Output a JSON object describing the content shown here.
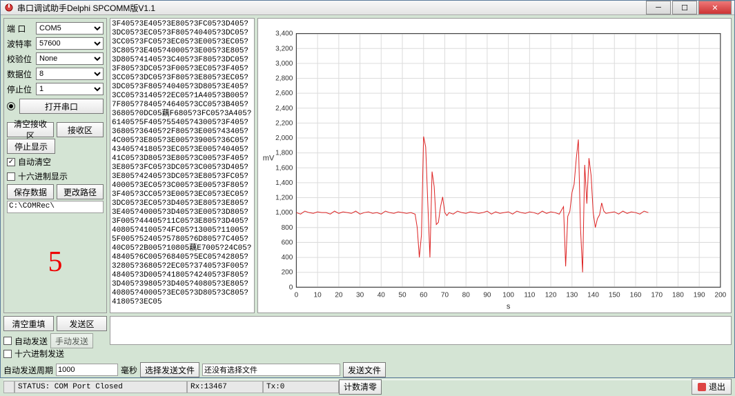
{
  "window": {
    "title": "串口调试助手Delphi SPCOMM版V1.1"
  },
  "config": {
    "port_label": "端  口",
    "port_value": "COM5",
    "baud_label": "波特率",
    "baud_value": "57600",
    "parity_label": "校验位",
    "parity_value": "None",
    "databits_label": "数据位",
    "databits_value": "8",
    "stopbits_label": "停止位",
    "stopbits_value": "1",
    "open_port": "打开串口"
  },
  "rx": {
    "clear_rx": "清空接收区",
    "rx_area": "接收区",
    "stop_display": "停止显示",
    "auto_clear": "自动清空",
    "auto_clear_on": true,
    "hex_display": "十六进制显示",
    "hex_display_on": false,
    "save_data": "保存数据",
    "change_path": "更改路径",
    "path": "C:\\COMRec\\",
    "big_num": "5"
  },
  "hex_lines": [
    "3F405?3E405?3E805?3FC05?3D405?",
    "3DC05?3EC05?3F805?40405?3DC05?",
    "3CC05?3FC05?3EC05?3E005?3EC05?",
    "3C805?3E405?40005?3E005?3E805?",
    "3D805?41405?3C405?3F805?3DC05?",
    "3F805?3DC05?3F005?3EC05?3F405?",
    "3CC05?3DC05?3F805?3E805?3EC05?",
    "3DC05?3F805?40405?3D805?3E405?",
    "3CC05?31405?2EC05?1A405?3B005?",
    "7F805?78405?46405?3CC05?3B405?",
    "36805?0DC05藕F6805?3FC05?3A405?",
    "61405?5F405?55405?43005?3F405?",
    "36805?36405?2F805?3E005?43405?",
    "4C005?3E805?3E005?39005?36C05?",
    "43405?41805?3EC05?3E005?40405?",
    "41C05?3D805?3E805?3C005?3F405?",
    "3E805?3FC05?3DC05?3C005?3D405?",
    "3E805?42405?3DC05?3E805?3FC05?",
    "40005?3EC05?3C005?3E005?3F805?",
    "3F405?3CC05?3E005?3EC05?3EC05?",
    "3DC05?3EC05?3D405?3E805?3E805?",
    "3E405?40005?3D405?3E005?3D805?",
    "3F005?44405?11C05?3E805?3D405?",
    "40805?41005?4FC05?13005?11005?",
    "5F005?52405?57805?6D805?7C405?",
    "40C05?2B005?10805藕E7005?24C05?",
    "48405?6C005?68405?5EC05?42805?",
    "32805?36805?2EC05?37405?3F005?",
    "48405?3D005?41805?42405?3F805?",
    "3D405?39805?3D405?40805?3E805?",
    "40805?40005?3EC05?3D805?3C805?",
    "41805?3EC05"
  ],
  "chart": {
    "type": "line",
    "xlabel": "s",
    "ylabel": "mV",
    "xlim": [
      0,
      200
    ],
    "xtick_step": 10,
    "ylim": [
      0,
      3400
    ],
    "ytick_step": 200,
    "line_color": "#dd2222",
    "line_width": 1,
    "grid_color": "#dcdcdc",
    "axis_color": "#333333",
    "bg_color": "#ffffff",
    "series_x": [
      0,
      2,
      4,
      6,
      8,
      10,
      12,
      14,
      16,
      18,
      20,
      22,
      24,
      26,
      28,
      30,
      32,
      34,
      36,
      38,
      40,
      42,
      44,
      46,
      48,
      50,
      52,
      54,
      56,
      57,
      58,
      59,
      60,
      61,
      62,
      63,
      64,
      65,
      66,
      67,
      68,
      69,
      70,
      71,
      72,
      74,
      76,
      78,
      80,
      82,
      84,
      86,
      88,
      90,
      92,
      94,
      96,
      98,
      100,
      102,
      104,
      106,
      108,
      110,
      112,
      114,
      116,
      118,
      120,
      122,
      124,
      126,
      127,
      128,
      129,
      130,
      131,
      132,
      133,
      134,
      135,
      136,
      137,
      138,
      139,
      140,
      141,
      142,
      143,
      144,
      145,
      146,
      148,
      150,
      152,
      154,
      156,
      158,
      160,
      162,
      164,
      166
    ],
    "series_y": [
      1000,
      980,
      1020,
      1000,
      990,
      1010,
      1000,
      1000,
      980,
      1020,
      990,
      1010,
      1000,
      990,
      1020,
      980,
      1000,
      1010,
      990,
      1000,
      980,
      1020,
      1000,
      990,
      1010,
      1000,
      990,
      1000,
      980,
      800,
      400,
      700,
      2020,
      1880,
      1120,
      400,
      1550,
      1350,
      840,
      870,
      1080,
      1210,
      1000,
      960,
      1000,
      980,
      1020,
      1000,
      990,
      1010,
      1000,
      990,
      1000,
      1020,
      980,
      1010,
      990,
      1000,
      1010,
      980,
      1020,
      1000,
      990,
      1010,
      1000,
      980,
      1020,
      990,
      1010,
      1000,
      980,
      1080,
      280,
      950,
      1020,
      1270,
      1380,
      1720,
      1980,
      800,
      200,
      1640,
      1120,
      1730,
      1500,
      1000,
      800,
      920,
      970,
      1130,
      1020,
      990,
      1000,
      1010,
      980,
      1020,
      990,
      1010,
      1000,
      980,
      1020,
      1000
    ]
  },
  "send": {
    "clear_refill": "清空重填",
    "tx_area": "发送区",
    "auto_send": "自动发送",
    "auto_send_on": false,
    "manual_send": "手动发送",
    "hex_send": "十六进制发送",
    "hex_send_on": false,
    "auto_period_label": "自动发送周期",
    "auto_period_value": "1000",
    "ms": "毫秒",
    "choose_file": "选择发送文件",
    "no_file": "还没有选择文件",
    "send_file": "发送文件"
  },
  "status": {
    "status_text": "STATUS: COM Port Closed",
    "rx_count": "Rx:13467",
    "tx_count": "Tx:0",
    "count_clear": "计数清零",
    "exit": "退出"
  }
}
